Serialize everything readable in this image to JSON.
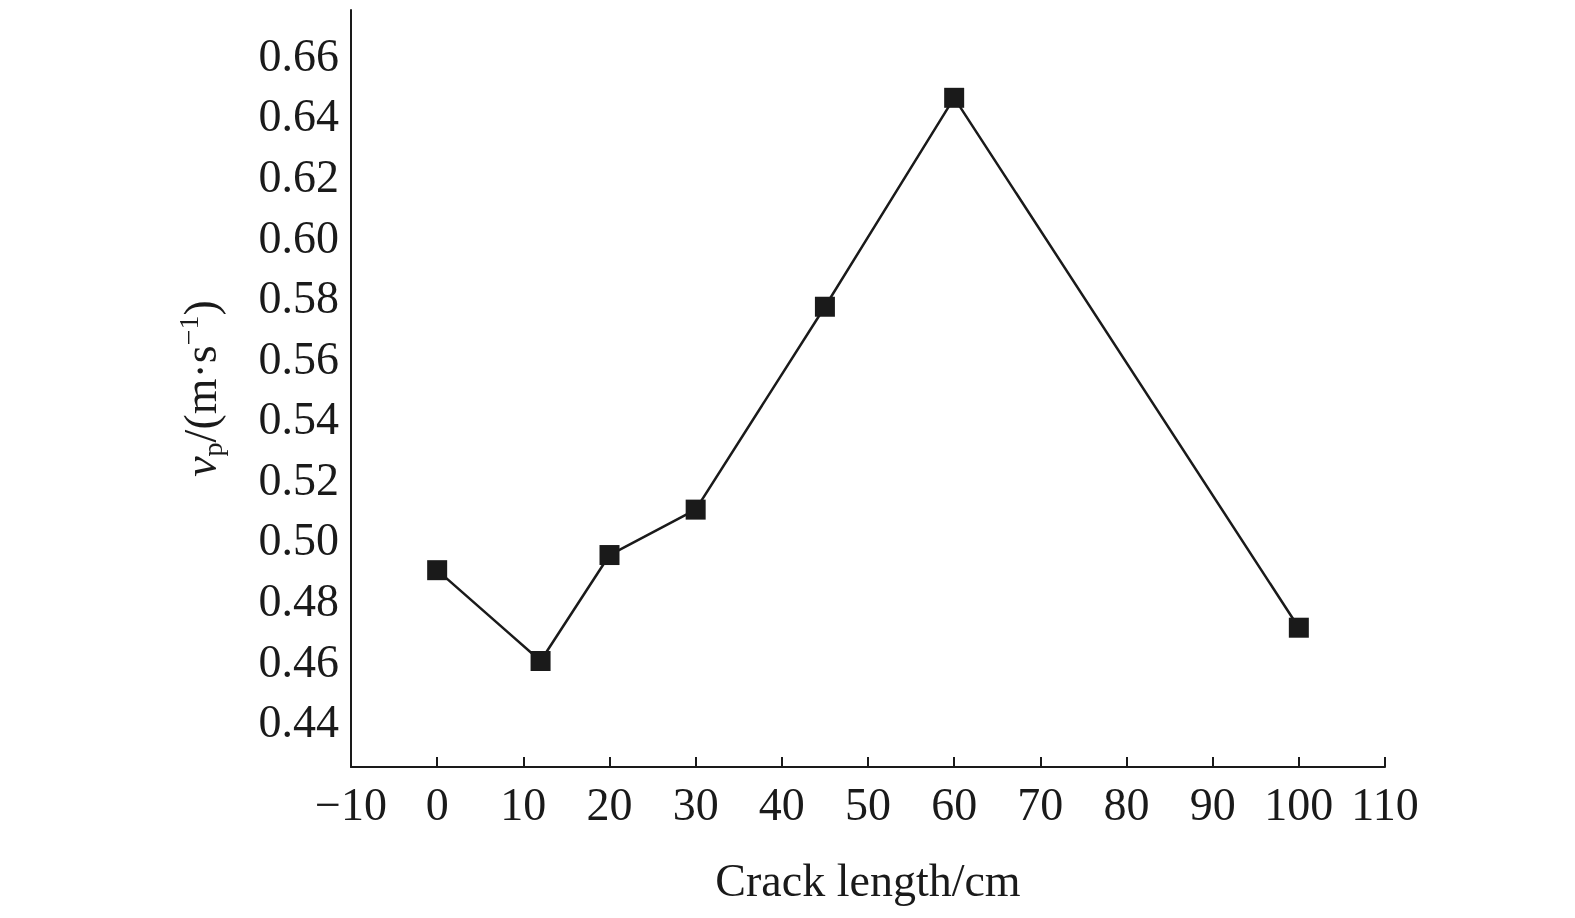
{
  "chart_data": {
    "type": "line",
    "xlabel": "Crack length/cm",
    "ylabel": "v$_{p}$/(m·s$^{−1}$)",
    "x": [
      0,
      12,
      20,
      30,
      45,
      60,
      100
    ],
    "series": [
      {
        "color": "#1a1a1a",
        "values": [
          0.49,
          0.46,
          0.495,
          0.51,
          0.577,
          0.646,
          0.471
        ]
      }
    ],
    "xlim": [
      -10,
      110
    ],
    "xticks": [
      {
        "value": -10,
        "label": "−10"
      },
      0,
      10,
      20,
      30,
      40,
      50,
      60,
      70,
      80,
      90,
      100,
      110
    ],
    "ylim": [
      0.425,
      0.675
    ],
    "yticks": [
      0.44,
      0.46,
      0.48,
      {
        "value": 0.5,
        "label": "0.50"
      },
      0.52,
      0.54,
      0.56,
      0.58,
      {
        "value": 0.6,
        "label": "0.60"
      },
      0.62,
      0.64,
      0.66
    ],
    "grid": false,
    "marker": "square",
    "line_style": "solid"
  }
}
